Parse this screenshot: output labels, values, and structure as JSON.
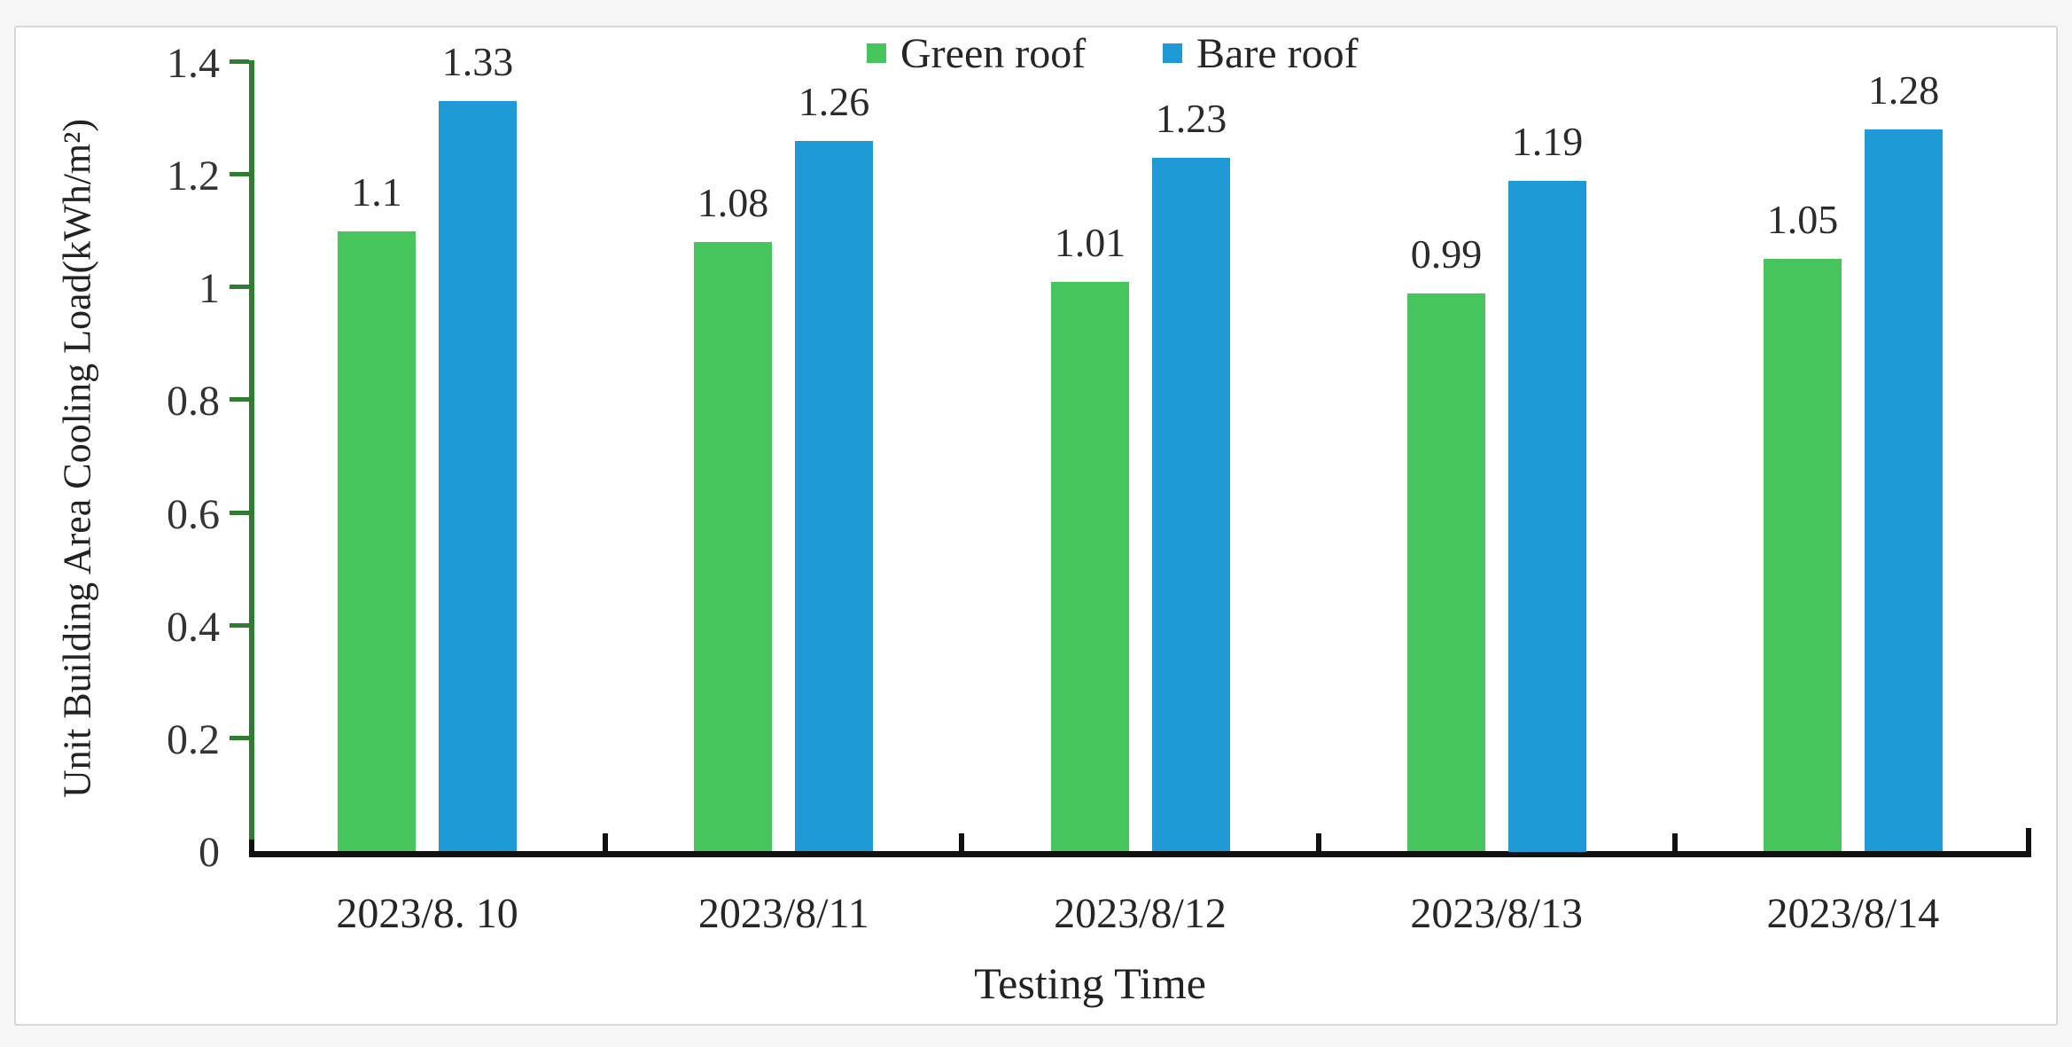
{
  "figure": {
    "outer_background": "#f6f6f6",
    "card_background": "#ffffff",
    "card_border_color": "#d7d7d7"
  },
  "chart_data": {
    "type": "bar",
    "title": "",
    "categories": [
      "2023/8. 10",
      "2023/8/11",
      "2023/8/12",
      "2023/8/13",
      "2023/8/14"
    ],
    "series": [
      {
        "name": "Green roof",
        "color": "#45C55C",
        "values": [
          1.1,
          1.08,
          1.01,
          0.99,
          1.05
        ],
        "value_labels": [
          "1.1",
          "1.08",
          "1.01",
          "0.99",
          "1.05"
        ]
      },
      {
        "name": "Bare roof",
        "color": "#1E9AD6",
        "values": [
          1.33,
          1.26,
          1.23,
          1.19,
          1.28
        ],
        "value_labels": [
          "1.33",
          "1.26",
          "1.23",
          "1.19",
          "1.28"
        ]
      }
    ],
    "xlabel": "Testing Time",
    "ylabel": "Unit Building Area Cooling Load(kWh/m²)",
    "ylim": [
      0,
      1.4
    ],
    "yticks": [
      {
        "value": 0,
        "label": "0"
      },
      {
        "value": 0.2,
        "label": "0.2"
      },
      {
        "value": 0.4,
        "label": "0.4"
      },
      {
        "value": 0.6,
        "label": "0.6"
      },
      {
        "value": 0.8,
        "label": "0.8"
      },
      {
        "value": 1,
        "label": "1"
      },
      {
        "value": 1.2,
        "label": "1.2"
      },
      {
        "value": 1.4,
        "label": "1.4"
      }
    ],
    "legend_position": "top",
    "grid": false,
    "y_axis_color": "#2F7D32",
    "x_axis_color": "#111111",
    "text_color": "#2b2b2b"
  }
}
